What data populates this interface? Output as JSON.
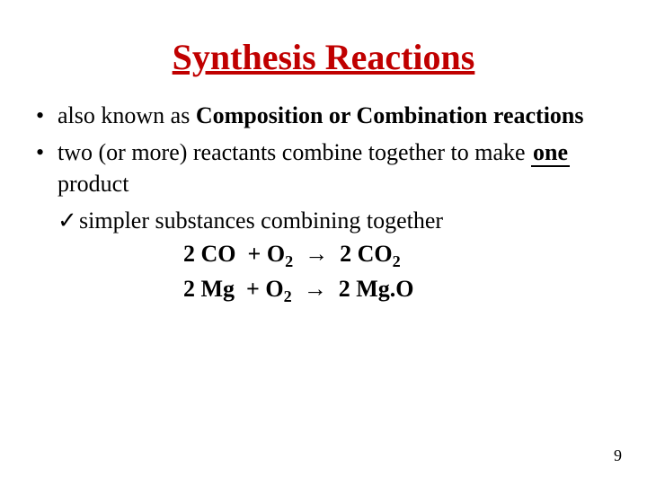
{
  "title": {
    "text": "Synthesis Reactions",
    "color": "#c00000",
    "fontsize": 40,
    "underline": true,
    "align": "center"
  },
  "bullets": [
    {
      "prefix": "also known as ",
      "bold": "Composition or Combination reactions",
      "suffix": ""
    },
    {
      "prefix": "two (or more) reactants combine together to make ",
      "blank": "one",
      "suffix": " product"
    }
  ],
  "sub_bullet": {
    "checkmark": "✓",
    "text": "simpler substances combining together"
  },
  "equations": [
    {
      "lhs_coef1": "2",
      "lhs1": "CO",
      "lhs_coef2": "",
      "lhs2_base": "O",
      "lhs2_sub": "2",
      "arrow": "→",
      "rhs_coef": "2",
      "rhs_base": "CO",
      "rhs_sub": "2",
      "rhs_tail": ""
    },
    {
      "lhs_coef1": "2",
      "lhs1": "Mg",
      "lhs_coef2": "",
      "lhs2_base": "O",
      "lhs2_sub": "2",
      "arrow": "→",
      "rhs_coef": "2",
      "rhs_base": "Mg",
      "rhs_sub": "",
      "rhs_tail": ".O"
    }
  ],
  "page_number": "9",
  "colors": {
    "title": "#c00000",
    "text": "#000000",
    "background": "#ffffff"
  },
  "typography": {
    "body_fontsize": 26,
    "title_fontsize": 40,
    "font_family": "Times New Roman"
  }
}
